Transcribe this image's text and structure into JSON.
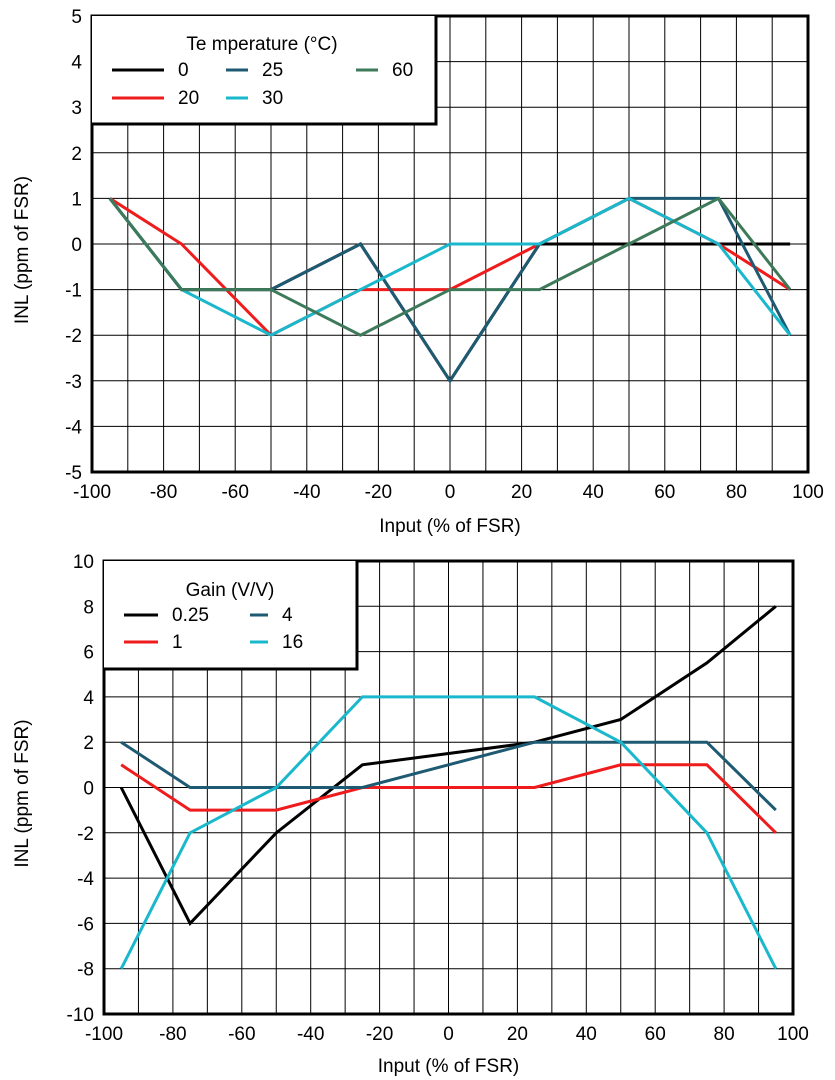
{
  "chart_data": [
    {
      "type": "line",
      "xlabel": "Input (% of FSR)",
      "ylabel": "INL (ppm of FSR)",
      "xlim": [
        -100,
        100
      ],
      "ylim": [
        -5,
        5
      ],
      "x_ticks": [
        -100,
        -80,
        -60,
        -40,
        -20,
        0,
        20,
        40,
        60,
        80,
        100
      ],
      "y_ticks": [
        -5,
        -4,
        -3,
        -2,
        -1,
        0,
        1,
        2,
        3,
        4,
        5
      ],
      "grid": true,
      "legend": {
        "title": "Te mperature (°C)",
        "placement": "top-left"
      },
      "x": [
        -95,
        -75,
        -50,
        -25,
        0,
        25,
        50,
        75,
        95
      ],
      "series": [
        {
          "name": "0",
          "color": "#000000",
          "values": [
            1,
            -1,
            -1,
            0,
            -3,
            0,
            0,
            0,
            0
          ]
        },
        {
          "name": "20",
          "color": "#ee1c1c",
          "values": [
            1,
            0,
            -2,
            -1,
            -1,
            0,
            1,
            0,
            -1
          ]
        },
        {
          "name": "25",
          "color": "#1f5a73",
          "values": [
            1,
            -1,
            -1,
            0,
            -3,
            0,
            1,
            1,
            -2
          ]
        },
        {
          "name": "30",
          "color": "#1ab8cc",
          "values": [
            1,
            -1,
            -2,
            -1,
            0,
            0,
            1,
            0,
            -2
          ]
        },
        {
          "name": "60",
          "color": "#3e7a5a",
          "values": [
            1,
            -1,
            -1,
            -2,
            -1,
            -1,
            0,
            1,
            -1
          ]
        }
      ]
    },
    {
      "type": "line",
      "xlabel": "Input (% of FSR)",
      "ylabel": "INL (ppm of FSR)",
      "xlim": [
        -100,
        100
      ],
      "ylim": [
        -10,
        10
      ],
      "x_ticks": [
        -100,
        -80,
        -60,
        -40,
        -20,
        0,
        20,
        40,
        60,
        80,
        100
      ],
      "y_ticks": [
        -10,
        -8,
        -6,
        -4,
        -2,
        0,
        2,
        4,
        6,
        8,
        10
      ],
      "grid": true,
      "legend": {
        "title": "Gain (V/V)",
        "placement": "top-left"
      },
      "x": [
        -95,
        -75,
        -50,
        -25,
        0,
        25,
        50,
        75,
        95
      ],
      "series": [
        {
          "name": "0.25",
          "color": "#000000",
          "values": [
            0,
            -6,
            -2,
            1,
            1.5,
            2,
            3,
            5.5,
            8
          ]
        },
        {
          "name": "1",
          "color": "#ee1c1c",
          "values": [
            1,
            -1,
            -1,
            0,
            0,
            0,
            1,
            1,
            -2
          ]
        },
        {
          "name": "4",
          "color": "#1f5a73",
          "values": [
            2,
            0,
            0,
            0,
            1,
            2,
            2,
            2,
            -1
          ]
        },
        {
          "name": "16",
          "color": "#1ab8cc",
          "values": [
            -8,
            -2,
            0,
            4,
            4,
            4,
            2,
            -2,
            -8
          ]
        }
      ]
    }
  ]
}
